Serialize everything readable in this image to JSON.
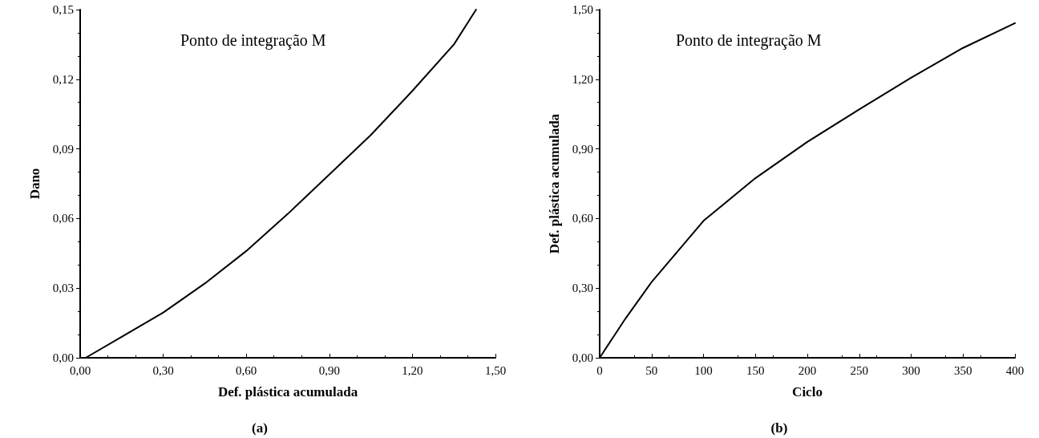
{
  "chart_data": [
    {
      "type": "line",
      "xlabel": "Def. plástica acumulada",
      "ylabel": "Dano",
      "annotations": [
        "Ponto de integração M",
        "(a)"
      ],
      "grid": false,
      "marker": "none",
      "line_style": "solid",
      "xlim": [
        0,
        1.5
      ],
      "ylim": [
        0,
        0.15
      ],
      "xticks": [
        {
          "value": 0,
          "label": "0,00"
        },
        {
          "value": 0.3,
          "label": "0,30"
        },
        {
          "value": 0.6,
          "label": "0,60"
        },
        {
          "value": 0.9,
          "label": "0,90"
        },
        {
          "value": 1.2,
          "label": "1,20"
        },
        {
          "value": 1.5,
          "label": "1,50"
        }
      ],
      "yticks": [
        {
          "value": 0,
          "label": "0,00"
        },
        {
          "value": 0.03,
          "label": "0,03"
        },
        {
          "value": 0.06,
          "label": "0,06"
        },
        {
          "value": 0.09,
          "label": "0,09"
        },
        {
          "value": 0.12,
          "label": "0,12"
        },
        {
          "value": 0.15,
          "label": "0,15"
        }
      ],
      "series": [
        {
          "color": "#000000",
          "x": [
            0.02,
            0.15,
            0.3,
            0.45,
            0.6,
            0.75,
            0.9,
            1.05,
            1.2,
            1.35,
            1.43
          ],
          "values": [
            0,
            0.009,
            0.0195,
            0.032,
            0.046,
            0.062,
            0.079,
            0.096,
            0.115,
            0.135,
            0.15
          ]
        }
      ]
    },
    {
      "type": "line",
      "xlabel": "Ciclo",
      "ylabel": "Def. plástica acumulada",
      "annotations": [
        "Ponto de integração M",
        "(b)"
      ],
      "grid": false,
      "marker": "none",
      "line_style": "solid",
      "xlim": [
        0,
        400
      ],
      "ylim": [
        0,
        1.5
      ],
      "xticks": [
        0,
        50,
        100,
        150,
        200,
        250,
        300,
        350,
        400
      ],
      "yticks": [
        {
          "value": 0,
          "label": "0,00"
        },
        {
          "value": 0.3,
          "label": "0,30"
        },
        {
          "value": 0.6,
          "label": "0,60"
        },
        {
          "value": 0.9,
          "label": "0,90"
        },
        {
          "value": 1.2,
          "label": "1,20"
        },
        {
          "value": 1.5,
          "label": "1,50"
        }
      ],
      "series": [
        {
          "color": "#000000",
          "x": [
            0,
            25,
            50,
            100,
            150,
            200,
            250,
            300,
            350,
            400
          ],
          "values": [
            0,
            0.17,
            0.326,
            0.59,
            0.774,
            0.93,
            1.07,
            1.207,
            1.335,
            1.442
          ]
        }
      ]
    }
  ]
}
